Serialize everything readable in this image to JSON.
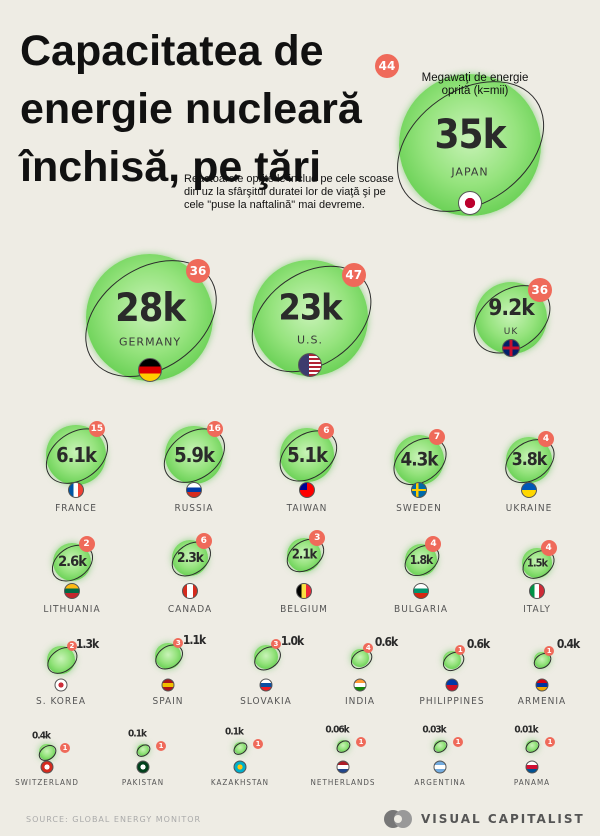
{
  "title": "Capacitatea de energie nucleară închisă, pe ţări",
  "legend": "Megawaţi de energie oprită (k=mii)",
  "note": "Reactoarele oprite le includ pe cele scoase din uz la sfârşitul duratei lor de viaţă şi pe cele \"puse la naftalină\" mai devreme.",
  "source": "SOURCE: GLOBAL ENERGY MONITOR",
  "brand": "VISUAL CAPITALIST",
  "chart_data": {
    "type": "bubble",
    "title": "Capacitatea de energie nucleară închisă, pe ţări",
    "size_unit": "MW shut down (k = thousands)",
    "badge_meaning": "Reactoarele oprite",
    "countries": [
      {
        "name": "JAPAN",
        "label": "35k",
        "mw": 35000,
        "reactors": "44"
      },
      {
        "name": "GERMANY",
        "label": "28k",
        "mw": 28000,
        "reactors": "36"
      },
      {
        "name": "U.S.",
        "label": "23k",
        "mw": 23000,
        "reactors": "47"
      },
      {
        "name": "UK",
        "label": "9.2k",
        "mw": 9200,
        "reactors": "36"
      },
      {
        "name": "FRANCE",
        "label": "6.1k",
        "mw": 6100,
        "reactors": "15"
      },
      {
        "name": "RUSSIA",
        "label": "5.9k",
        "mw": 5900,
        "reactors": "16"
      },
      {
        "name": "TAIWAN",
        "label": "5.1k",
        "mw": 5100,
        "reactors": "6"
      },
      {
        "name": "SWEDEN",
        "label": "4.3k",
        "mw": 4300,
        "reactors": "7"
      },
      {
        "name": "UKRAINE",
        "label": "3.8k",
        "mw": 3800,
        "reactors": "4"
      },
      {
        "name": "LITHUANIA",
        "label": "2.6k",
        "mw": 2600,
        "reactors": "2"
      },
      {
        "name": "CANADA",
        "label": "2.3k",
        "mw": 2300,
        "reactors": "6"
      },
      {
        "name": "BELGIUM",
        "label": "2.1k",
        "mw": 2100,
        "reactors": "3"
      },
      {
        "name": "BULGARIA",
        "label": "1.8k",
        "mw": 1800,
        "reactors": "4"
      },
      {
        "name": "ITALY",
        "label": "1.5k",
        "mw": 1500,
        "reactors": "4"
      },
      {
        "name": "S. KOREA",
        "label": "1.3k",
        "mw": 1300,
        "reactors": "2"
      },
      {
        "name": "SPAIN",
        "label": "1.1k",
        "mw": 1100,
        "reactors": "3"
      },
      {
        "name": "SLOVAKIA",
        "label": "1.0k",
        "mw": 1000,
        "reactors": "3"
      },
      {
        "name": "INDIA",
        "label": "0.6k",
        "mw": 600,
        "reactors": "4"
      },
      {
        "name": "PHILIPPINES",
        "label": "0.6k",
        "mw": 600,
        "reactors": "1"
      },
      {
        "name": "ARMENIA",
        "label": "0.4k",
        "mw": 400,
        "reactors": "1"
      },
      {
        "name": "SWITZERLAND",
        "label": "0.4k",
        "mw": 400,
        "reactors": "1"
      },
      {
        "name": "PAKISTAN",
        "label": "0.1k",
        "mw": 100,
        "reactors": "1"
      },
      {
        "name": "KAZAKHSTAN",
        "label": "0.1k",
        "mw": 100,
        "reactors": "1"
      },
      {
        "name": "NETHERLANDS",
        "label": "0.06k",
        "mw": 60,
        "reactors": "1"
      },
      {
        "name": "ARGENTINA",
        "label": "0.03k",
        "mw": 30,
        "reactors": "1"
      },
      {
        "name": "PANAMA",
        "label": "0.01k",
        "mw": 10,
        "reactors": "1"
      }
    ]
  }
}
